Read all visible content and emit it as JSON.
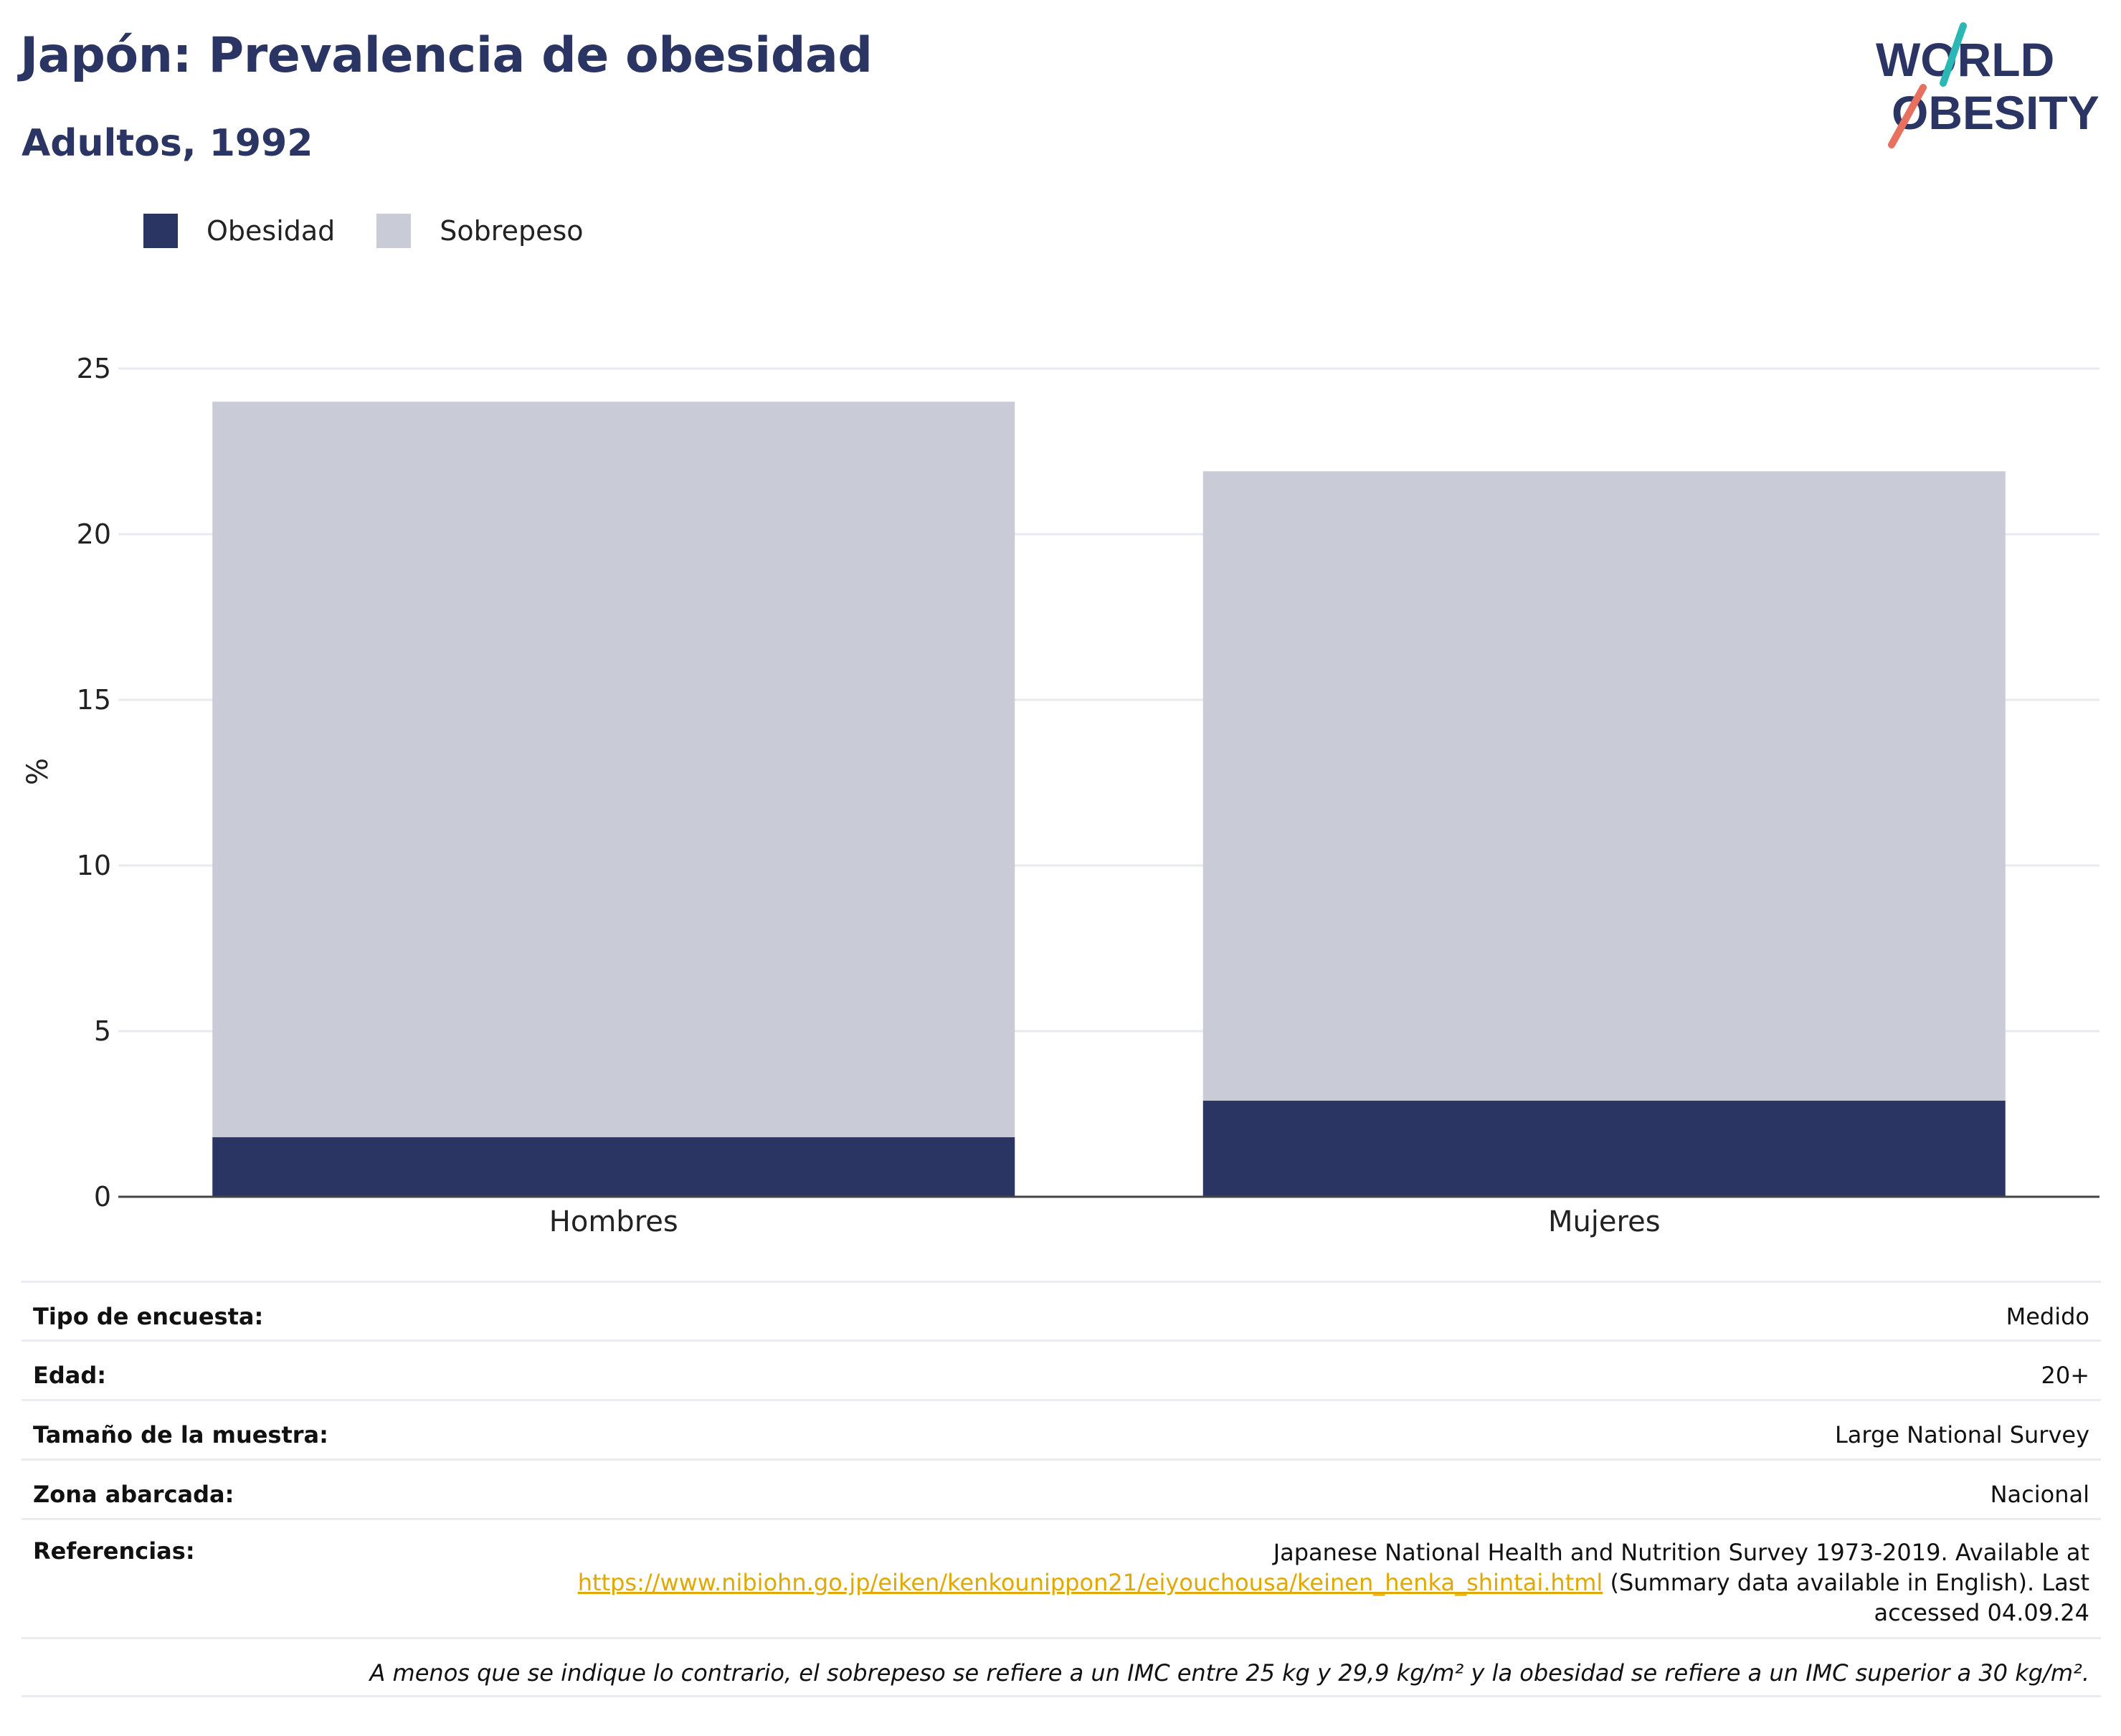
{
  "header": {
    "title": "Japón: Prevalencia de obesidad",
    "subtitle": "Adultos, 1992"
  },
  "logo": {
    "line1": "WORLD",
    "line2": "OBESITY"
  },
  "colors": {
    "obesidad": "#2b3564",
    "sobrepeso": "#c9cbd7",
    "title": "#2b3564",
    "link": "#e1a800",
    "logo_teal": "#2bb7b3",
    "logo_coral": "#e8705f"
  },
  "chart_data": {
    "type": "bar",
    "stacked": true,
    "categories": [
      "Hombres",
      "Mujeres"
    ],
    "series": [
      {
        "name": "Obesidad",
        "values": [
          1.8,
          2.9
        ]
      },
      {
        "name": "Sobrepeso",
        "values": [
          22.2,
          19.0
        ]
      }
    ],
    "ylabel": "%",
    "xlabel": "",
    "ylim": [
      0,
      25
    ],
    "yticks": [
      "0",
      "5",
      "10",
      "15",
      "20",
      "25"
    ],
    "grid": true,
    "legend_position": "top-left"
  },
  "info": {
    "survey_type_label": "Tipo de encuesta:",
    "survey_type_value": "Medido",
    "age_label": "Edad:",
    "age_value": "20+",
    "sample_label": "Tamaño de la muestra:",
    "sample_value": "Large National Survey",
    "area_label": "Zona abarcada:",
    "area_value": "Nacional",
    "references_label": "Referencias:",
    "references_text_1": "Japanese National Health and Nutrition Survey 1973-2019. Available at",
    "references_link": "https://www.nibiohn.go.jp/eiken/kenkounippon21/eiyouchousa/keinen_henka_shintai.html",
    "references_text_2": " (Summary data available in English). Last",
    "references_text_3": "accessed 04.09.24",
    "footnote": "A menos que se indique lo contrario, el sobrepeso se refiere a un IMC entre 25 kg y 29,9 kg/m² y la obesidad se refiere a un IMC superior a 30 kg/m²."
  }
}
